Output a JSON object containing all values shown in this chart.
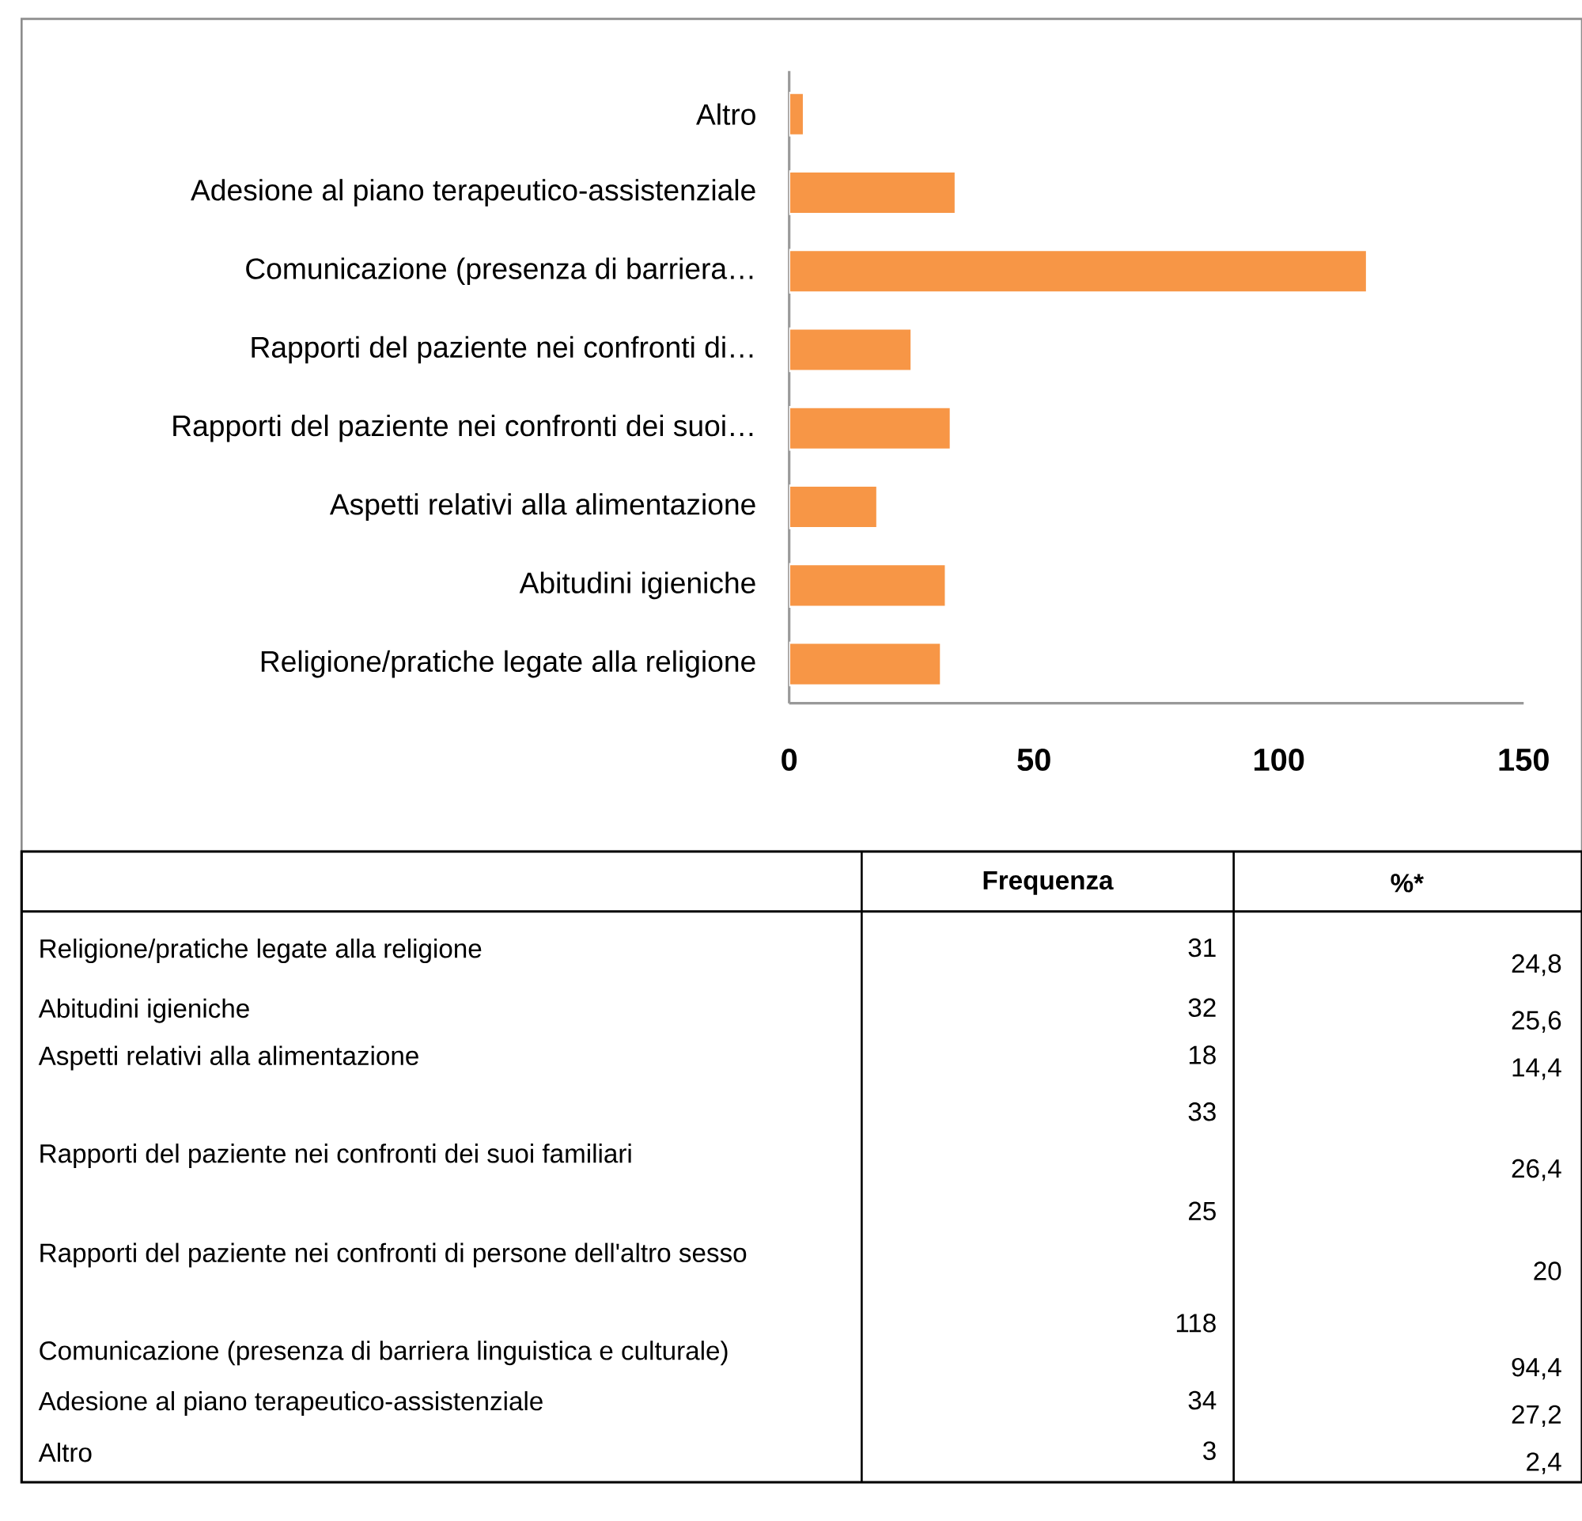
{
  "chart_data": {
    "type": "bar",
    "orientation": "horizontal",
    "categories": [
      "Altro",
      "Adesione al piano terapeutico-assistenziale",
      "Comunicazione (presenza di barriera…",
      "Rapporti del paziente nei confronti di…",
      "Rapporti del paziente nei confronti dei suoi…",
      "Aspetti relativi alla alimentazione",
      "Abitudini igieniche",
      "Religione/pratiche legate alla religione"
    ],
    "values": [
      3,
      34,
      118,
      25,
      33,
      18,
      32,
      31
    ],
    "color": "#f79646",
    "xlim": [
      0,
      150
    ],
    "xticks": [
      0,
      50,
      100,
      150
    ],
    "annotations": [
      "Frequenza",
      "%*",
      "Religione/pratiche legate alla religione",
      "31",
      "24,8",
      "Abitudini igieniche",
      "32",
      "25,6",
      "Aspetti relativi alla alimentazione",
      "18",
      "14,4",
      "Rapporti del paziente nei confronti dei suoi familiari",
      "33",
      "26,4",
      "Rapporti del paziente nei confronti di persone dell'altro sesso",
      "25",
      "20",
      "Comunicazione (presenza di barriera linguistica e culturale)",
      "118",
      "94,4",
      "Adesione al piano terapeutico-assistenziale",
      "34",
      "27,2",
      "Altro",
      "3",
      "2,4"
    ]
  }
}
